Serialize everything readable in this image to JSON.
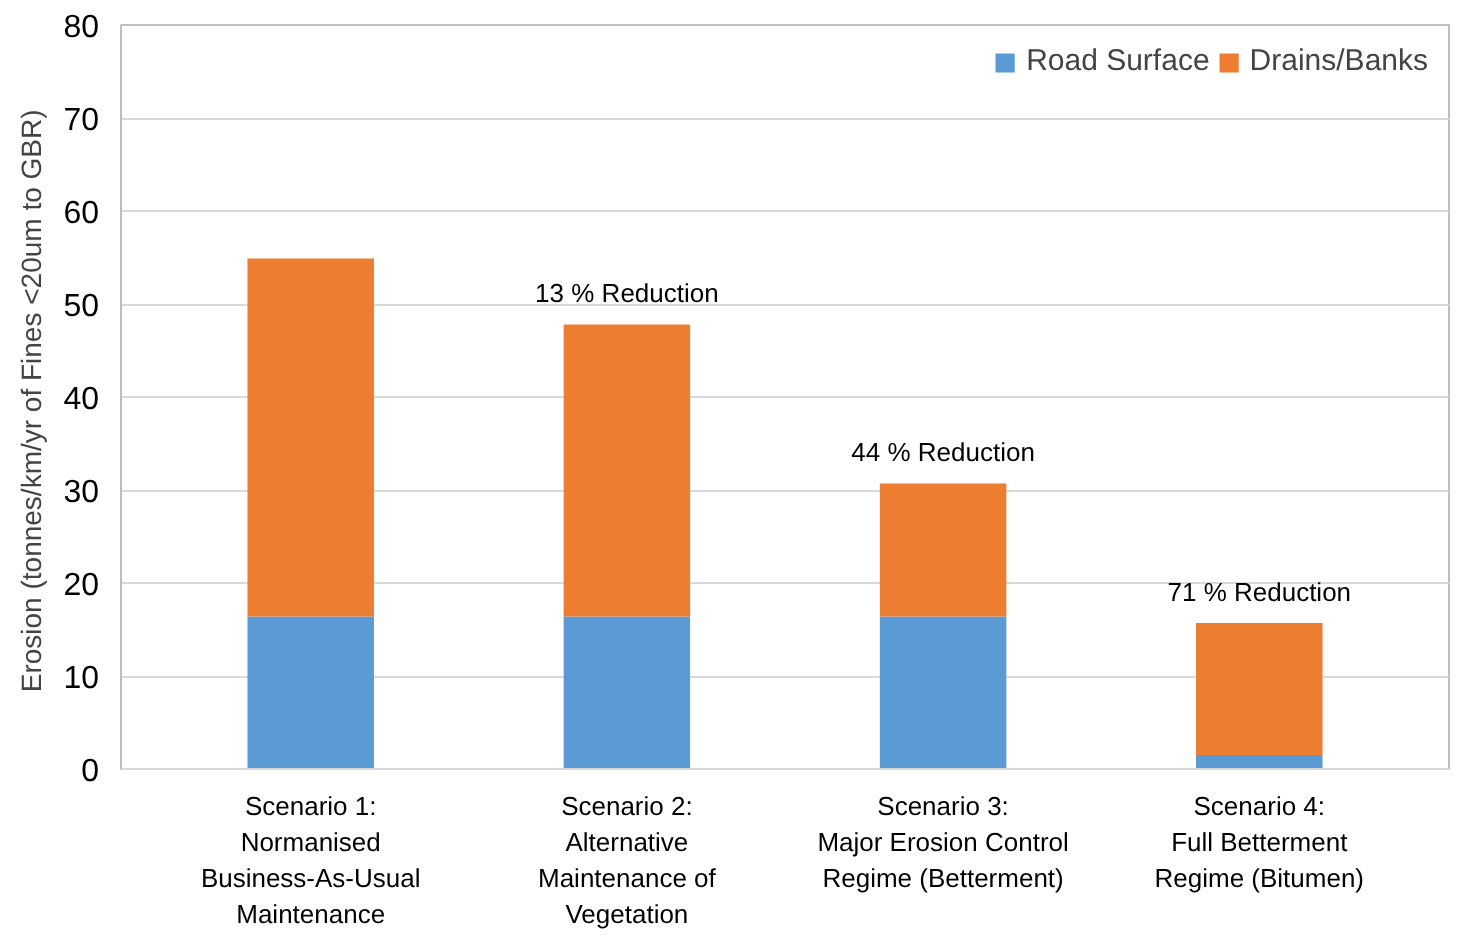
{
  "chart_data": {
    "type": "bar",
    "stacked": true,
    "ylabel": "Erosion (tonnes/km/yr of  Fines <20um to GBR)",
    "categories": [
      "Scenario 1:\nNormanised\nBusiness-As-Usual\nMaintenance",
      "Scenario 2:\nAlternative\nMaintenance of\nVegetation",
      "Scenario 3:\nMajor Erosion Control\nRegime (Betterment)",
      "Scenario 4:\nFull Betterment\nRegime (Bitumen)"
    ],
    "series": [
      {
        "name": "Road Surface",
        "color": "#5b9bd5",
        "values": [
          16.4,
          16.4,
          16.4,
          1.5
        ]
      },
      {
        "name": "Drains/Banks",
        "color": "#ed7d31",
        "values": [
          38.5,
          31.4,
          14.3,
          14.2
        ]
      }
    ],
    "ylim": [
      0,
      80
    ],
    "yticks": [
      0,
      10,
      20,
      30,
      40,
      50,
      60,
      70,
      80
    ],
    "grid": "y",
    "legend": "top right",
    "annotations": [
      {
        "text": "13 % Reduction",
        "x": "Scenario 2:\nAlternative\nMaintenance of\nVegetation",
        "y": 47.8
      },
      {
        "text": "44 % Reduction",
        "x": "Scenario 3:\nMajor Erosion Control\nRegime (Betterment)",
        "y": 30.7
      },
      {
        "text": "71 % Reduction",
        "x": "Scenario 4:\nFull Betterment\nRegime (Bitumen)",
        "y": 15.7
      }
    ]
  }
}
